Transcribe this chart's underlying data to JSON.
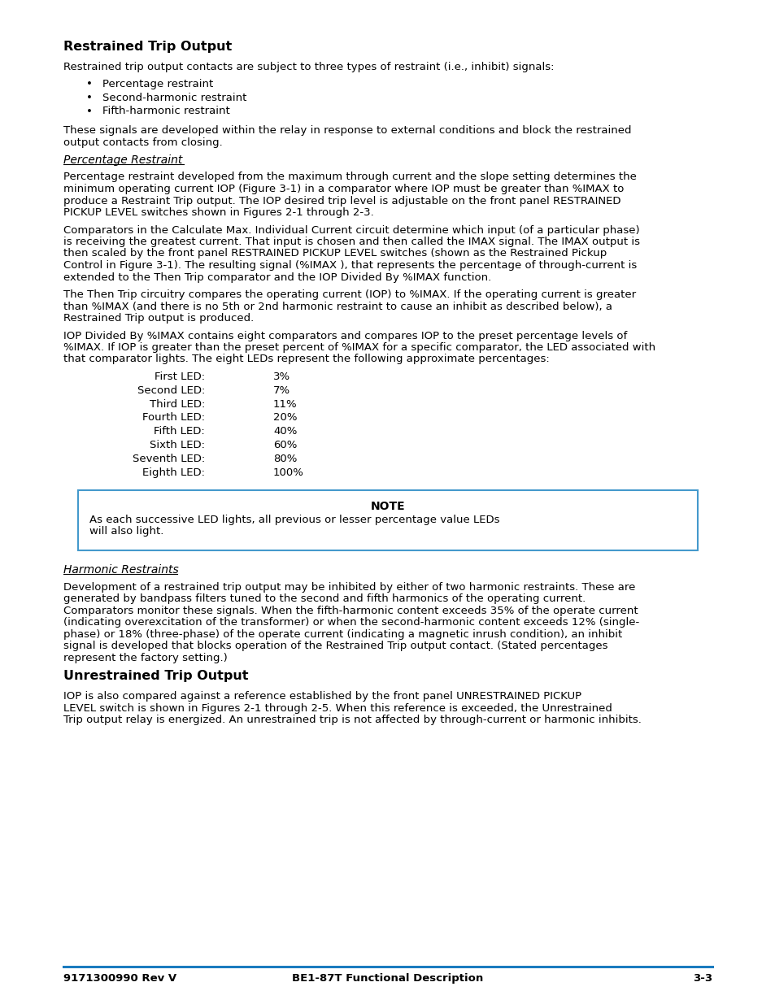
{
  "title": "Restrained Trip Output",
  "footer_left": "9171300990 Rev V",
  "footer_center": "BE1-87T Functional Description",
  "footer_right": "3-3",
  "footer_line_color": "#1a7bbf",
  "background_color": "#ffffff",
  "text_color": "#000000",
  "body_font_size": 9.5,
  "heading_font_size": 11.5,
  "led_labels": [
    "First LED:",
    "Second LED:",
    "Third LED:",
    "Fourth LED:",
    "Fifth LED:",
    "Sixth LED:",
    "Seventh LED:",
    "Eighth LED:"
  ],
  "led_values": [
    "3%",
    "7%",
    "11%",
    "20%",
    "40%",
    "60%",
    "80%",
    "100%"
  ],
  "note_text_line1": "As each successive LED lights, all previous or lesser percentage value LEDs",
  "note_text_line2": "will also light.",
  "note_box_edge": "#4499cc",
  "bullets": [
    "Percentage restraint",
    "Second-harmonic restraint",
    "Fifth-harmonic restraint"
  ],
  "p_intro": "Restrained trip output contacts are subject to three types of restraint (i.e., inhibit) signals:",
  "p_signals": [
    "These signals are developed within the relay in response to external conditions and block the restrained",
    "output contacts from closing."
  ],
  "subhead1": "Percentage Restraint",
  "p1": [
    "Percentage restraint developed from the maximum through current and the slope setting determines the",
    "minimum operating current IOP (Figure 3-1) in a comparator where IOP must be greater than %IMAX to",
    "produce a Restraint Trip output. The IOP desired trip level is adjustable on the front panel RESTRAINED",
    "PICKUP LEVEL switches shown in Figures 2-1 through 2-3."
  ],
  "p2": [
    "Comparators in the Calculate Max. Individual Current circuit determine which input (of a particular phase)",
    "is receiving the greatest current. That input is chosen and then called the IMAX signal. The IMAX output is",
    "then scaled by the front panel RESTRAINED PICKUP LEVEL switches (shown as the Restrained Pickup",
    "Control in Figure 3-1). The resulting signal (%IMAX ), that represents the percentage of through-current is",
    "extended to the Then Trip comparator and the IOP Divided By %IMAX function."
  ],
  "p3": [
    "The Then Trip circuitry compares the operating current (IOP) to %IMAX. If the operating current is greater",
    "than %IMAX (and there is no 5th or 2nd harmonic restraint to cause an inhibit as described below), a",
    "Restrained Trip output is produced."
  ],
  "p4": [
    "IOP Divided By %IMAX contains eight comparators and compares IOP to the preset percentage levels of",
    "%IMAX. If IOP is greater than the preset percent of %IMAX for a specific comparator, the LED associated with",
    "that comparator lights. The eight LEDs represent the following approximate percentages:"
  ],
  "subhead2": "Harmonic Restraints",
  "p_harmonic": [
    "Development of a restrained trip output may be inhibited by either of two harmonic restraints. These are",
    "generated by bandpass filters tuned to the second and fifth harmonics of the operating current.",
    "Comparators monitor these signals. When the fifth-harmonic content exceeds 35% of the operate current",
    "(indicating overexcitation of the transformer) or when the second-harmonic content exceeds 12% (single-",
    "phase) or 18% (three-phase) of the operate current (indicating a magnetic inrush condition), an inhibit",
    "signal is developed that blocks operation of the Restrained Trip output contact. (Stated percentages",
    "represent the factory setting.)"
  ],
  "heading2": "Unrestrained Trip Output",
  "p_unrestrained": [
    "IOP is also compared against a reference established by the front panel UNRESTRAINED PICKUP",
    "LEVEL switch is shown in Figures 2-1 through 2-5. When this reference is exceeded, the Unrestrained",
    "Trip output relay is energized. An unrestrained trip is not affected by through-current or harmonic inhibits."
  ]
}
